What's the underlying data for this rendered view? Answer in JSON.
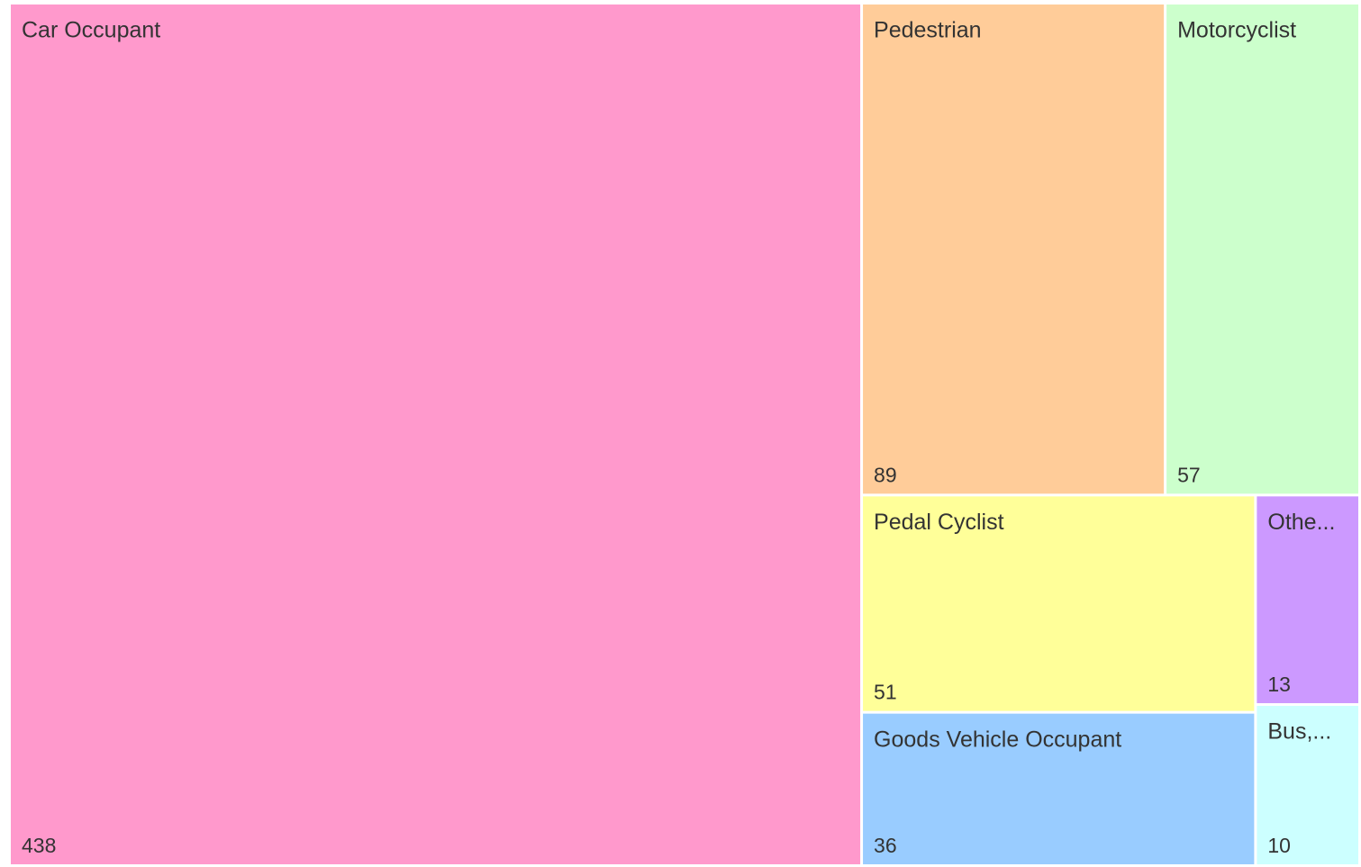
{
  "chart_data": {
    "type": "treemap",
    "categories": [
      "Car Occupant",
      "Pedestrian",
      "Motorcyclist",
      "Pedal Cyclist",
      "Goods Vehicle Occupant",
      "Othe...",
      "Bus,..."
    ],
    "values": [
      438,
      89,
      57,
      51,
      36,
      13,
      10
    ],
    "colors": [
      "#ff99cc",
      "#ffcc99",
      "#ccffcc",
      "#ffff99",
      "#99ccff",
      "#cc99ff",
      "#ccffff"
    ]
  }
}
